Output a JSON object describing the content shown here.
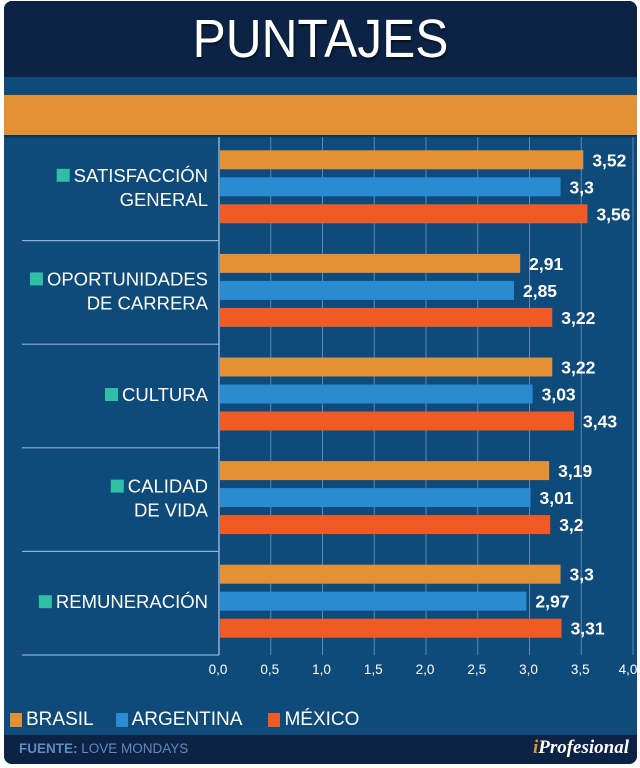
{
  "header": {
    "title": "PUNTAJES"
  },
  "chart_data": {
    "type": "bar",
    "orientation": "horizontal",
    "title": "PUNTAJES",
    "xlabel": "",
    "ylabel": "",
    "xlim": [
      0,
      4.0
    ],
    "x_ticks": [
      0,
      0.5,
      1.0,
      1.5,
      2.0,
      2.5,
      3.0,
      3.5,
      4.0
    ],
    "x_tick_labels": [
      "0,0",
      "0,5",
      "1,0",
      "1,5",
      "2,0",
      "2,5",
      "3,0",
      "3,5",
      "4,0"
    ],
    "grid": true,
    "legend_position": "bottom-left",
    "categories": [
      {
        "lines": [
          "SATISFACCIÓN",
          "GENERAL"
        ]
      },
      {
        "lines": [
          "OPORTUNIDADES",
          "DE CARRERA"
        ]
      },
      {
        "lines": [
          "CULTURA"
        ]
      },
      {
        "lines": [
          "CALIDAD",
          "DE VIDA"
        ]
      },
      {
        "lines": [
          "REMUNERACIÓN"
        ]
      }
    ],
    "series": [
      {
        "name": "BRASIL",
        "color": "#e49035",
        "values": [
          3.52,
          2.91,
          3.22,
          3.19,
          3.3
        ],
        "labels": [
          "3,52",
          "2,91",
          "3,22",
          "3,19",
          "3,3"
        ]
      },
      {
        "name": "ARGENTINA",
        "color": "#2a8bd0",
        "values": [
          3.3,
          2.85,
          3.03,
          3.01,
          2.97
        ],
        "labels": [
          "3,3",
          "2,85",
          "3,03",
          "3,01",
          "2,97"
        ]
      },
      {
        "name": "MÉXICO",
        "color": "#f05a24",
        "values": [
          3.56,
          3.22,
          3.43,
          3.2,
          3.31
        ],
        "labels": [
          "3,56",
          "3,22",
          "3,43",
          "3,2",
          "3,31"
        ]
      }
    ]
  },
  "colors": {
    "background": "#0e4a7a",
    "header": "#0c2345",
    "accent_orange": "#e49035",
    "category_bullet": "#2ebfa5"
  },
  "footer": {
    "source_label": "FUENTE:",
    "source_value": "LOVE MONDAYS",
    "brand_i": "i",
    "brand_rest": "Profesional"
  }
}
